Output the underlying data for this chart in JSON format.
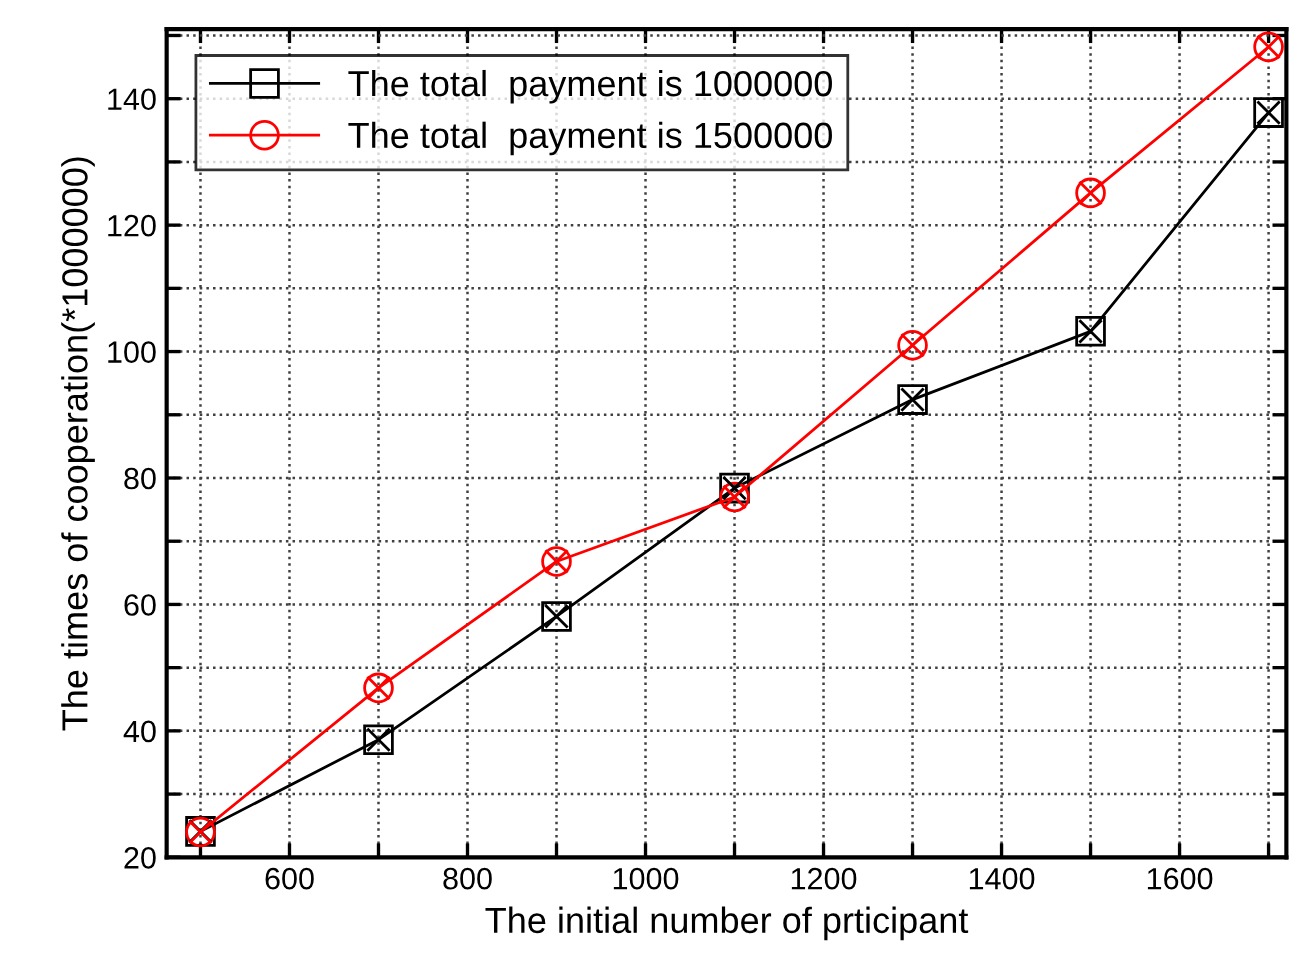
{
  "chart_data": {
    "type": "line",
    "xlabel": "The initial number of prticipant",
    "ylabel": "The times of cooperation(*1000000)",
    "x": [
      500,
      700,
      900,
      1100,
      1300,
      1500,
      1700
    ],
    "series": [
      {
        "name": "The total  payment is 1000000",
        "color": "#000000",
        "marker": "square",
        "values": [
          24.1,
          38.6,
          58.1,
          78.4,
          92.4,
          103.2,
          137.8
        ]
      },
      {
        "name": "The total  payment is 1500000",
        "color": "#ff0000",
        "marker": "circle",
        "values": [
          24.0,
          46.8,
          66.8,
          77.0,
          101.0,
          125.1,
          148.2
        ]
      }
    ],
    "xlim": [
      462,
      1720
    ],
    "ylim": [
      20,
      151
    ],
    "xticks": [
      {
        "value": 500,
        "label": null
      },
      600,
      {
        "value": 700,
        "label": null
      },
      800,
      {
        "value": 900,
        "label": null
      },
      1000,
      {
        "value": 1100,
        "label": null
      },
      1200,
      {
        "value": 1300,
        "label": null
      },
      1400,
      {
        "value": 1500,
        "label": null
      },
      1600,
      {
        "value": 1700,
        "label": null
      }
    ],
    "yticks": [
      20,
      {
        "value": 30,
        "label": null
      },
      40,
      {
        "value": 50,
        "label": null
      },
      60,
      {
        "value": 70,
        "label": null
      },
      80,
      {
        "value": 90,
        "label": null
      },
      100,
      {
        "value": 110,
        "label": null
      },
      120,
      {
        "value": 130,
        "label": null
      },
      140,
      {
        "value": 150,
        "label": null
      }
    ],
    "grid": true,
    "legend": "top left",
    "line_style": "solid"
  }
}
